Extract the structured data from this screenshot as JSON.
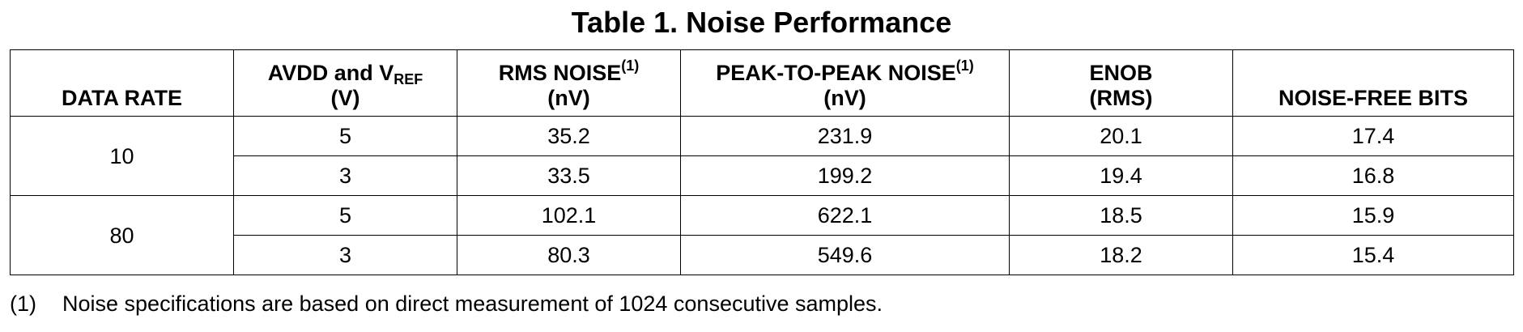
{
  "title": "Table 1. Noise Performance",
  "table": {
    "headers": {
      "data_rate": {
        "line1": "DATA RATE"
      },
      "avdd": {
        "line1_pre": "AVDD and V",
        "line1_sub": "REF",
        "line2": "(V)"
      },
      "rms": {
        "line1": "RMS NOISE",
        "note": "(1)",
        "line2": "(nV)"
      },
      "pp": {
        "line1": "PEAK-TO-PEAK NOISE",
        "note": "(1)",
        "line2": "(nV)"
      },
      "enob": {
        "line1": "ENOB",
        "line2": "(RMS)"
      },
      "nfb": {
        "line1": "NOISE-FREE BITS"
      }
    },
    "groups": [
      {
        "data_rate": "10",
        "rows": [
          {
            "avdd": "5",
            "rms": "35.2",
            "pp": "231.9",
            "enob": "20.1",
            "nfb": "17.4"
          },
          {
            "avdd": "3",
            "rms": "33.5",
            "pp": "199.2",
            "enob": "19.4",
            "nfb": "16.8"
          }
        ]
      },
      {
        "data_rate": "80",
        "rows": [
          {
            "avdd": "5",
            "rms": "102.1",
            "pp": "622.1",
            "enob": "18.5",
            "nfb": "15.9"
          },
          {
            "avdd": "3",
            "rms": "80.3",
            "pp": "549.6",
            "enob": "18.2",
            "nfb": "15.4"
          }
        ]
      }
    ]
  },
  "footnote": {
    "mark": "(1)",
    "text": "Noise specifications are based on direct measurement of 1024 consecutive samples."
  }
}
